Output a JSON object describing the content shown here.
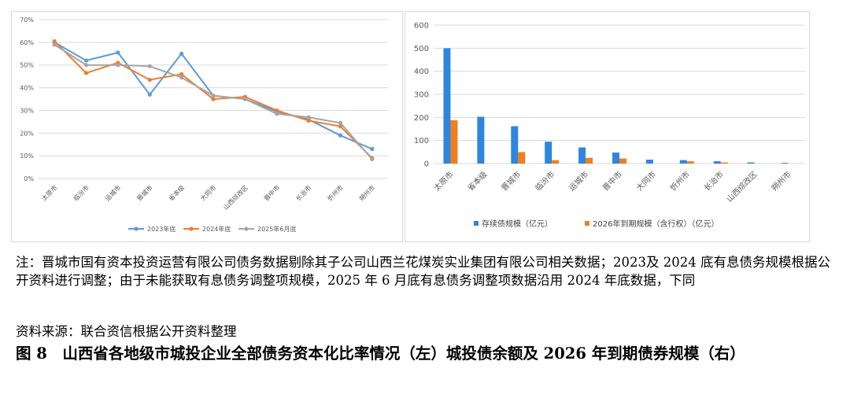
{
  "chart_data": [
    {
      "type": "line",
      "categories": [
        "太原市",
        "临汾市",
        "运城市",
        "晋城市",
        "省本级",
        "大同市",
        "山西综改区",
        "晋中市",
        "长治市",
        "忻州市",
        "朔州市"
      ],
      "yticks": [
        "0%",
        "10%",
        "20%",
        "30%",
        "40%",
        "50%",
        "60%",
        "70%"
      ],
      "ylim": [
        0,
        70
      ],
      "grid": true,
      "legend_position": "bottom",
      "series": [
        {
          "name": "2023年底",
          "color": "#5b9bd5",
          "values": [
            60,
            52,
            55.5,
            37,
            55,
            36.5,
            35,
            29.5,
            26,
            19,
            13
          ]
        },
        {
          "name": "2024年底",
          "color": "#ed7d31",
          "values": [
            60.5,
            46.5,
            51,
            43.5,
            46,
            35,
            36,
            30,
            25.5,
            23,
            9
          ]
        },
        {
          "name": "2025年6月底",
          "color": "#a5a5a5",
          "values": [
            59,
            50,
            50,
            49.5,
            44.5,
            36.5,
            35,
            28.5,
            27,
            24.5,
            8.5
          ]
        }
      ]
    },
    {
      "type": "bar",
      "categories": [
        "太原市",
        "省本级",
        "晋城市",
        "临汾市",
        "运城市",
        "晋中市",
        "大同市",
        "忻州市",
        "长治市",
        "山西综改区",
        "朔州市"
      ],
      "yticks": [
        "0",
        "100",
        "200",
        "300",
        "400",
        "500",
        "600"
      ],
      "ylim": [
        0,
        600
      ],
      "grid": true,
      "legend_position": "bottom",
      "series": [
        {
          "name": "存续债规模（亿元）",
          "color": "#2e86de",
          "values": [
            500,
            203,
            162,
            95,
            70,
            48,
            17,
            15,
            10,
            5,
            3
          ]
        },
        {
          "name": "2026年到期规模（含行权）（亿元）",
          "color": "#f07f1f",
          "values": [
            188,
            0,
            50,
            15,
            25,
            22,
            0,
            10,
            5,
            0,
            0
          ]
        }
      ]
    }
  ],
  "note": "注：晋城市国有资本投资运营有限公司债务数据剔除其子公司山西兰花煤炭实业集团有限公司相关数据；2023及 2024 底有息债务规模根据公开资料进行调整；由于未能获取有息债务调整项规模，2025 年 6 月底有息债务调整项数据沿用 2024 年底数据，下同",
  "source": "资料来源：联合资信根据公开资料整理",
  "caption": "图 8　山西省各地级市城投企业全部债务资本化比率情况（左）城投债余额及 2026 年到期债券规模（右）"
}
